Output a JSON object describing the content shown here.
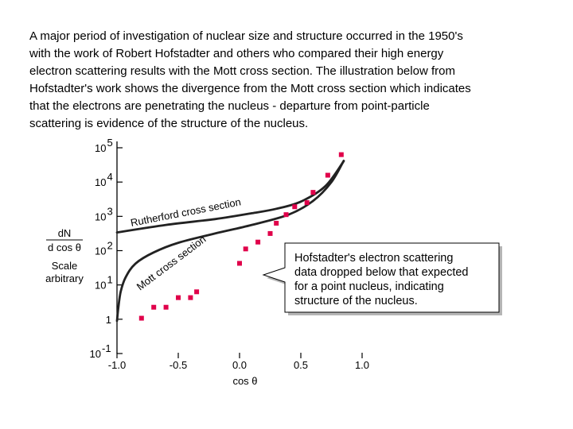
{
  "intro": {
    "lines": [
      "A major period of investigation of nuclear size and structure occurred in the 1950's",
      "with the work of Robert Hofstadter and others who compared their high energy",
      "electron scattering results with the Mott cross section. The illustration below from",
      "Hofstadter's work shows the divergence from the Mott cross section which indicates",
      "that the electrons are penetrating the nucleus - departure from point-particle",
      "scattering is evidence of the structure of the nucleus."
    ]
  },
  "chart_data": {
    "type": "scatter",
    "scale": {
      "y": "log"
    },
    "xlabel": "cos θ",
    "ylabel": {
      "numerator": "dN",
      "denominator": "d cos θ",
      "line3": "Scale",
      "line4": "arbitrary"
    },
    "xlim": [
      -1.0,
      1.0
    ],
    "ylim_exponents": [
      -1,
      5
    ],
    "x_ticks": [
      {
        "value": -1.0,
        "label": "-1.0"
      },
      {
        "value": -0.5,
        "label": "-0.5"
      },
      {
        "value": 0.0,
        "label": "0.0"
      },
      {
        "value": 0.5,
        "label": "0.5"
      },
      {
        "value": 1.0,
        "label": "1.0"
      }
    ],
    "y_ticks": [
      {
        "exp": 5,
        "base": "10",
        "sup": "5"
      },
      {
        "exp": 4,
        "base": "10",
        "sup": "4"
      },
      {
        "exp": 3,
        "base": "10",
        "sup": "3"
      },
      {
        "exp": 2,
        "base": "10",
        "sup": "2"
      },
      {
        "exp": 1,
        "base": "10",
        "sup": "1"
      },
      {
        "exp": 0,
        "base": "1",
        "sup": ""
      },
      {
        "exp": -1,
        "base": "10",
        "sup": "-1"
      }
    ],
    "curves": [
      {
        "name": "Rutherford cross section",
        "color": "#222222",
        "points": [
          [
            -1.0,
            2.53
          ],
          [
            -0.6,
            2.75
          ],
          [
            -0.2,
            2.92
          ],
          [
            0.1,
            3.09
          ],
          [
            0.3,
            3.22
          ],
          [
            0.5,
            3.43
          ],
          [
            0.7,
            3.88
          ],
          [
            0.85,
            4.61
          ]
        ]
      },
      {
        "name": "Mott cross section",
        "color": "#222222",
        "points": [
          [
            -1.0,
            -0.05
          ],
          [
            -0.99,
            0.3
          ],
          [
            -0.97,
            0.8
          ],
          [
            -0.93,
            1.22
          ],
          [
            -0.85,
            1.62
          ],
          [
            -0.7,
            1.95
          ],
          [
            -0.5,
            2.23
          ],
          [
            -0.2,
            2.5
          ],
          [
            0.1,
            2.75
          ],
          [
            0.4,
            3.05
          ],
          [
            0.6,
            3.45
          ],
          [
            0.75,
            4.0
          ],
          [
            0.85,
            4.62
          ]
        ]
      }
    ],
    "series": [
      {
        "name": "Hofstadter data",
        "color": "#e0004a",
        "points": [
          [
            -0.8,
            0.03
          ],
          [
            -0.7,
            0.35
          ],
          [
            -0.6,
            0.35
          ],
          [
            -0.5,
            0.63
          ],
          [
            -0.4,
            0.63
          ],
          [
            -0.35,
            0.8
          ],
          [
            0.0,
            1.63
          ],
          [
            0.05,
            2.05
          ],
          [
            0.15,
            2.25
          ],
          [
            0.25,
            2.5
          ],
          [
            0.3,
            2.8
          ],
          [
            0.38,
            3.05
          ],
          [
            0.45,
            3.28
          ],
          [
            0.55,
            3.4
          ],
          [
            0.6,
            3.7
          ],
          [
            0.72,
            4.2
          ],
          [
            0.83,
            4.8
          ]
        ]
      }
    ],
    "annotation": {
      "lines": [
        "Hofstadter's electron scattering",
        "data dropped below that expected",
        "for a point nucleus, indicating",
        "structure of the nucleus."
      ],
      "points_to": [
        0.04,
        2.0
      ]
    }
  }
}
